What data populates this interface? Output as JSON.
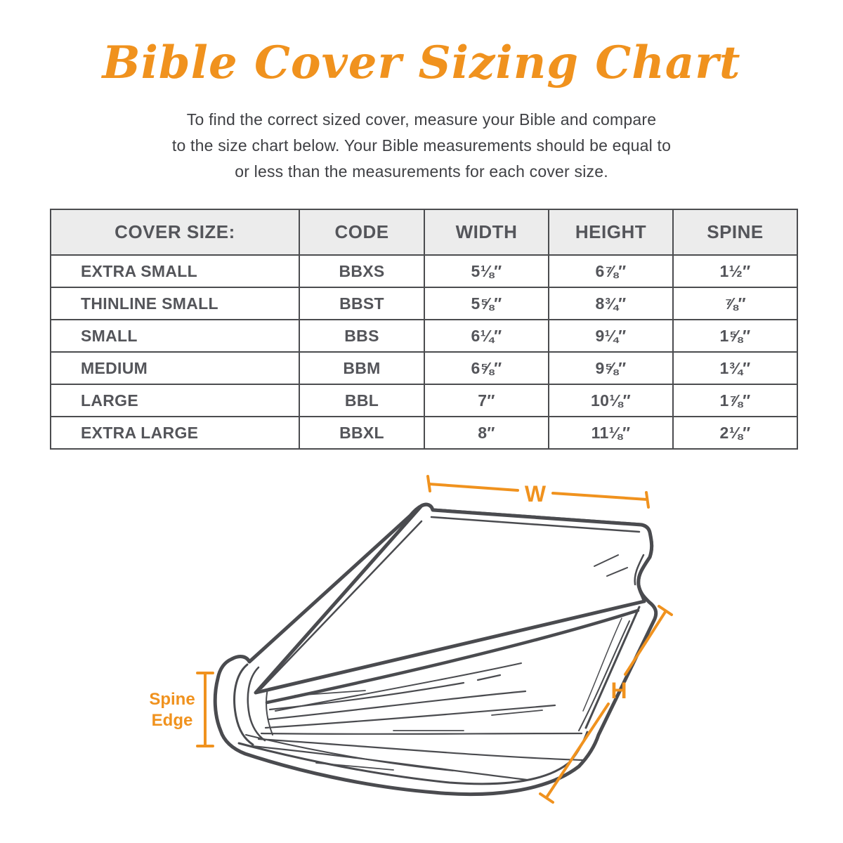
{
  "title": "Bible Cover Sizing Chart",
  "subtitle": {
    "line1": "To find the correct sized cover, measure your Bible and compare",
    "line2": "to the size chart below. Your Bible measurements should be equal to",
    "line3": "or less than the measurements for each cover size."
  },
  "table": {
    "headers": [
      "COVER SIZE:",
      "CODE",
      "WIDTH",
      "HEIGHT",
      "SPINE"
    ],
    "rows": [
      [
        "EXTRA SMALL",
        "BBXS",
        "5⅛″",
        "6⅞″",
        "1½″"
      ],
      [
        "THINLINE SMALL",
        "BBST",
        "5⅝″",
        "8¾″",
        "⅞″"
      ],
      [
        "SMALL",
        "BBS",
        "6¼″",
        "9¼″",
        "1⅝″"
      ],
      [
        "MEDIUM",
        "BBM",
        "6⅝″",
        "9⅝″",
        "1¾″"
      ],
      [
        "LARGE",
        "BBL",
        "7″",
        "10⅛″",
        "1⅞″"
      ],
      [
        "EXTRA LARGE",
        "BBXL",
        "8″",
        "11⅛″",
        "2⅛″"
      ]
    ]
  },
  "diagram": {
    "width_label": "W",
    "height_label": "H",
    "spine_label_line1": "Spine",
    "spine_label_line2": "Edge"
  },
  "colors": {
    "accent_orange": "#F0921E",
    "text_dark": "#54555A",
    "line_dark": "#4A4B4F",
    "table_header_bg": "#ECECEC"
  }
}
